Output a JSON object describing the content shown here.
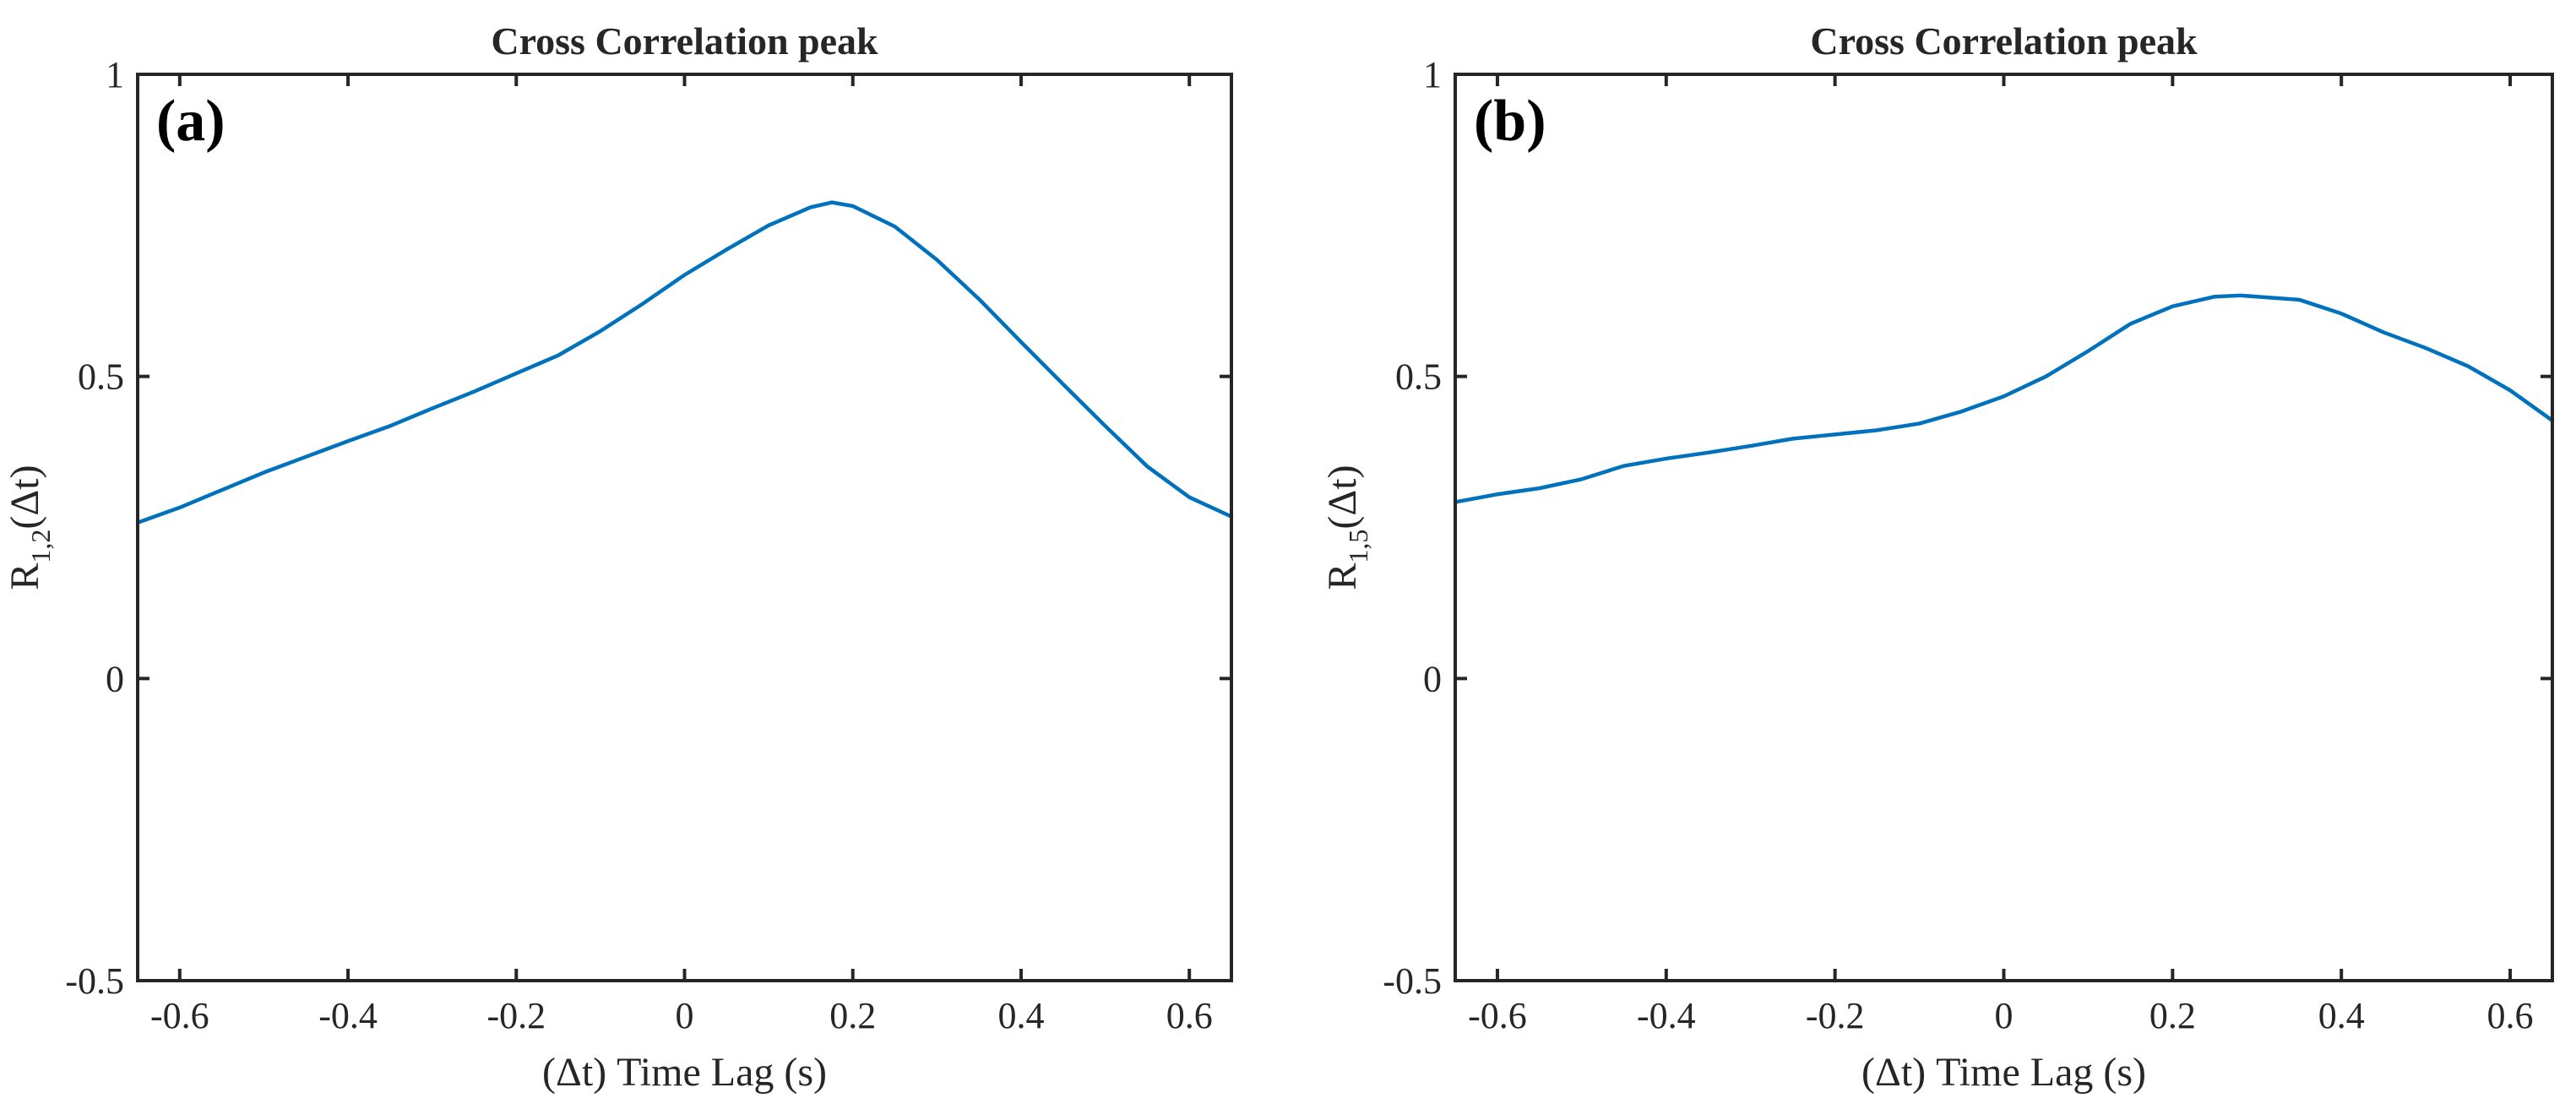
{
  "chart_data": [
    {
      "type": "line",
      "panel_label": "(a)",
      "title": "Cross Correlation peak",
      "xlabel": "(Δt) Time Lag (s)",
      "ylabel_main": "R",
      "ylabel_sub": "1,2",
      "ylabel_suffix": "(Δt)",
      "xlim": [
        -0.65,
        0.65
      ],
      "ylim": [
        -0.5,
        1
      ],
      "xticks": [
        -0.6,
        -0.4,
        -0.2,
        0,
        0.2,
        0.4,
        0.6
      ],
      "xtick_labels": [
        "-0.6",
        "-0.4",
        "-0.2",
        "0",
        "0.2",
        "0.4",
        "0.6"
      ],
      "yticks": [
        -0.5,
        0,
        0.5,
        1
      ],
      "ytick_labels": [
        "-0.5",
        "0",
        "0.5",
        "1"
      ],
      "color": "#0072BD",
      "series": [
        {
          "name": "R_1,2",
          "x": [
            -0.65,
            -0.6,
            -0.55,
            -0.5,
            -0.45,
            -0.4,
            -0.35,
            -0.3,
            -0.25,
            -0.2,
            -0.15,
            -0.1,
            -0.05,
            0,
            0.05,
            0.1,
            0.15,
            0.175,
            0.2,
            0.25,
            0.3,
            0.35,
            0.4,
            0.45,
            0.5,
            0.55,
            0.6,
            0.65
          ],
          "y": [
            0.258,
            0.283,
            0.312,
            0.341,
            0.367,
            0.393,
            0.418,
            0.447,
            0.475,
            0.505,
            0.535,
            0.575,
            0.62,
            0.668,
            0.71,
            0.75,
            0.78,
            0.788,
            0.782,
            0.748,
            0.693,
            0.628,
            0.557,
            0.487,
            0.418,
            0.351,
            0.3,
            0.268
          ]
        }
      ]
    },
    {
      "type": "line",
      "panel_label": "(b)",
      "title": "Cross Correlation peak",
      "xlabel": "(Δt) Time Lag (s)",
      "ylabel_main": "R",
      "ylabel_sub": "1,5",
      "ylabel_suffix": "(Δt)",
      "xlim": [
        -0.65,
        0.65
      ],
      "ylim": [
        -0.5,
        1
      ],
      "xticks": [
        -0.6,
        -0.4,
        -0.2,
        0,
        0.2,
        0.4,
        0.6
      ],
      "xtick_labels": [
        "-0.6",
        "-0.4",
        "-0.2",
        "0",
        "0.2",
        "0.4",
        "0.6"
      ],
      "yticks": [
        -0.5,
        0,
        0.5,
        1
      ],
      "ytick_labels": [
        "-0.5",
        "0",
        "0.5",
        "1"
      ],
      "color": "#0072BD",
      "series": [
        {
          "name": "R_1,5",
          "x": [
            -0.65,
            -0.6,
            -0.55,
            -0.5,
            -0.45,
            -0.4,
            -0.35,
            -0.3,
            -0.25,
            -0.2,
            -0.15,
            -0.1,
            -0.05,
            0,
            0.05,
            0.1,
            0.15,
            0.2,
            0.25,
            0.28,
            0.35,
            0.4,
            0.45,
            0.5,
            0.55,
            0.6,
            0.65
          ],
          "y": [
            0.292,
            0.305,
            0.315,
            0.33,
            0.352,
            0.364,
            0.374,
            0.385,
            0.397,
            0.404,
            0.411,
            0.422,
            0.442,
            0.467,
            0.5,
            0.542,
            0.587,
            0.616,
            0.632,
            0.634,
            0.627,
            0.604,
            0.573,
            0.547,
            0.517,
            0.477,
            0.427
          ]
        }
      ]
    }
  ]
}
